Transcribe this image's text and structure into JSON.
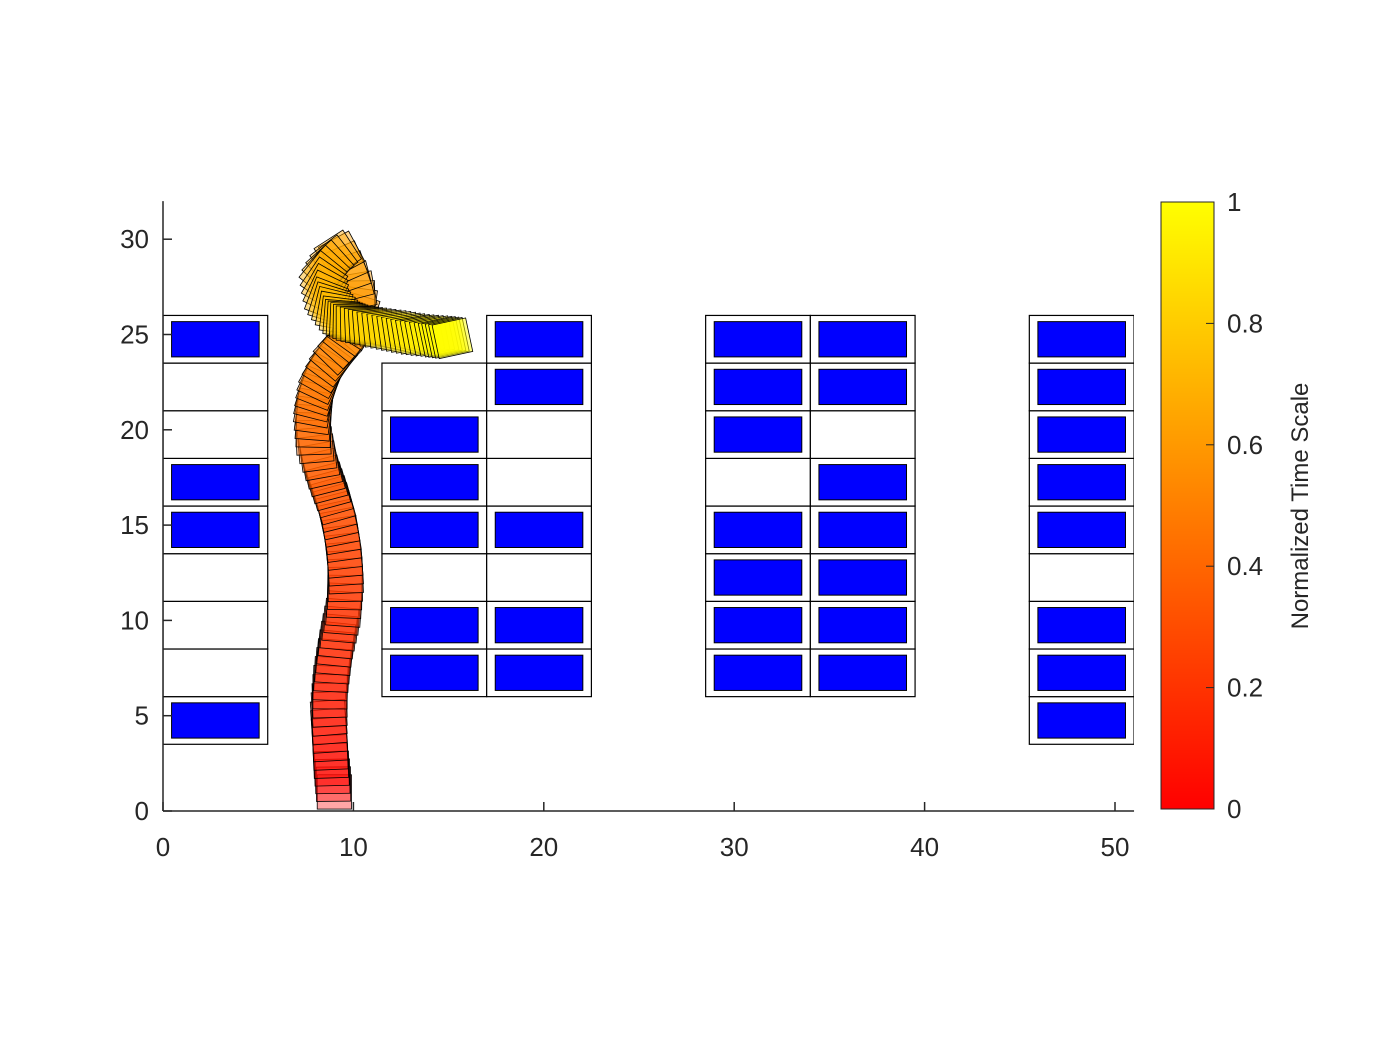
{
  "chart_data": {
    "type": "scatter",
    "title": "",
    "xlabel": "",
    "ylabel": "",
    "xlim": [
      0,
      51
    ],
    "ylim": [
      0,
      32
    ],
    "xticks": [
      0,
      10,
      20,
      30,
      40,
      50
    ],
    "yticks": [
      0,
      5,
      10,
      15,
      20,
      25,
      30
    ],
    "grid": false,
    "slot_size": [
      5.5,
      2.5
    ],
    "car_size": [
      4.6,
      1.85
    ],
    "colors": {
      "slot_edge": "#000000",
      "parked_car": "#0000ff",
      "axis": "#262626"
    },
    "parking_columns": [
      {
        "x0": 0,
        "y0": 3.5,
        "occupied": [
          true,
          false,
          false,
          false,
          true,
          true,
          false,
          false,
          true
        ]
      },
      {
        "x0": 11.5,
        "y0": 6,
        "occupied": [
          true,
          true,
          false,
          true,
          true,
          true,
          false
        ]
      },
      {
        "x0": 17,
        "y0": 6,
        "occupied": [
          true,
          true,
          false,
          true,
          false,
          false,
          true,
          true
        ]
      },
      {
        "x0": 28.5,
        "y0": 6,
        "occupied": [
          true,
          true,
          true,
          true,
          false,
          true,
          true,
          true
        ]
      },
      {
        "x0": 34,
        "y0": 6,
        "occupied": [
          true,
          true,
          true,
          true,
          true,
          false,
          true,
          true
        ]
      },
      {
        "x0": 45.5,
        "y0": 3.5,
        "occupied": [
          true,
          true,
          true,
          false,
          true,
          true,
          true,
          true,
          true
        ]
      }
    ],
    "vehicle_footprint": {
      "width": 1.8,
      "length": 1.8
    },
    "trajectory": {
      "t": [
        0,
        0.04,
        0.08,
        0.12,
        0.16,
        0.2,
        0.24,
        0.28,
        0.32,
        0.36,
        0.4,
        0.44,
        0.48,
        0.52,
        0.56,
        0.6,
        0.64,
        0.68,
        0.72,
        0.76,
        0.8,
        0.84,
        0.88,
        0.92,
        0.96,
        1.0
      ],
      "x": [
        9.0,
        8.8,
        8.7,
        8.8,
        9.1,
        9.5,
        9.6,
        9.4,
        9.0,
        8.4,
        7.9,
        7.9,
        8.3,
        9.2,
        10.3,
        10.2,
        9.3,
        8.4,
        8.6,
        9.3,
        10.0,
        11.0,
        12.2,
        13.3,
        14.4,
        15.2
      ],
      "y": [
        1.0,
        2.8,
        4.8,
        6.8,
        8.8,
        10.6,
        12.5,
        14.4,
        16.2,
        17.8,
        19.6,
        21.3,
        22.8,
        24.2,
        25.6,
        27.3,
        29.4,
        28.2,
        26.8,
        25.9,
        25.6,
        25.4,
        25.2,
        25.0,
        24.9,
        24.8
      ],
      "heading_deg": [
        90,
        92,
        95,
        88,
        84,
        86,
        93,
        99,
        106,
        104,
        92,
        78,
        62,
        45,
        60,
        100,
        120,
        140,
        160,
        175,
        180,
        185,
        188,
        190,
        192,
        192
      ]
    },
    "colorbar": {
      "label": "Normalized Time Scale",
      "range": [
        0,
        1
      ],
      "ticks": [
        0,
        0.2,
        0.4,
        0.6,
        0.8,
        1
      ],
      "tick_labels": [
        "0",
        "0.2",
        "0.4",
        "0.6",
        "0.8",
        "1"
      ],
      "colormap": "autumn"
    }
  }
}
